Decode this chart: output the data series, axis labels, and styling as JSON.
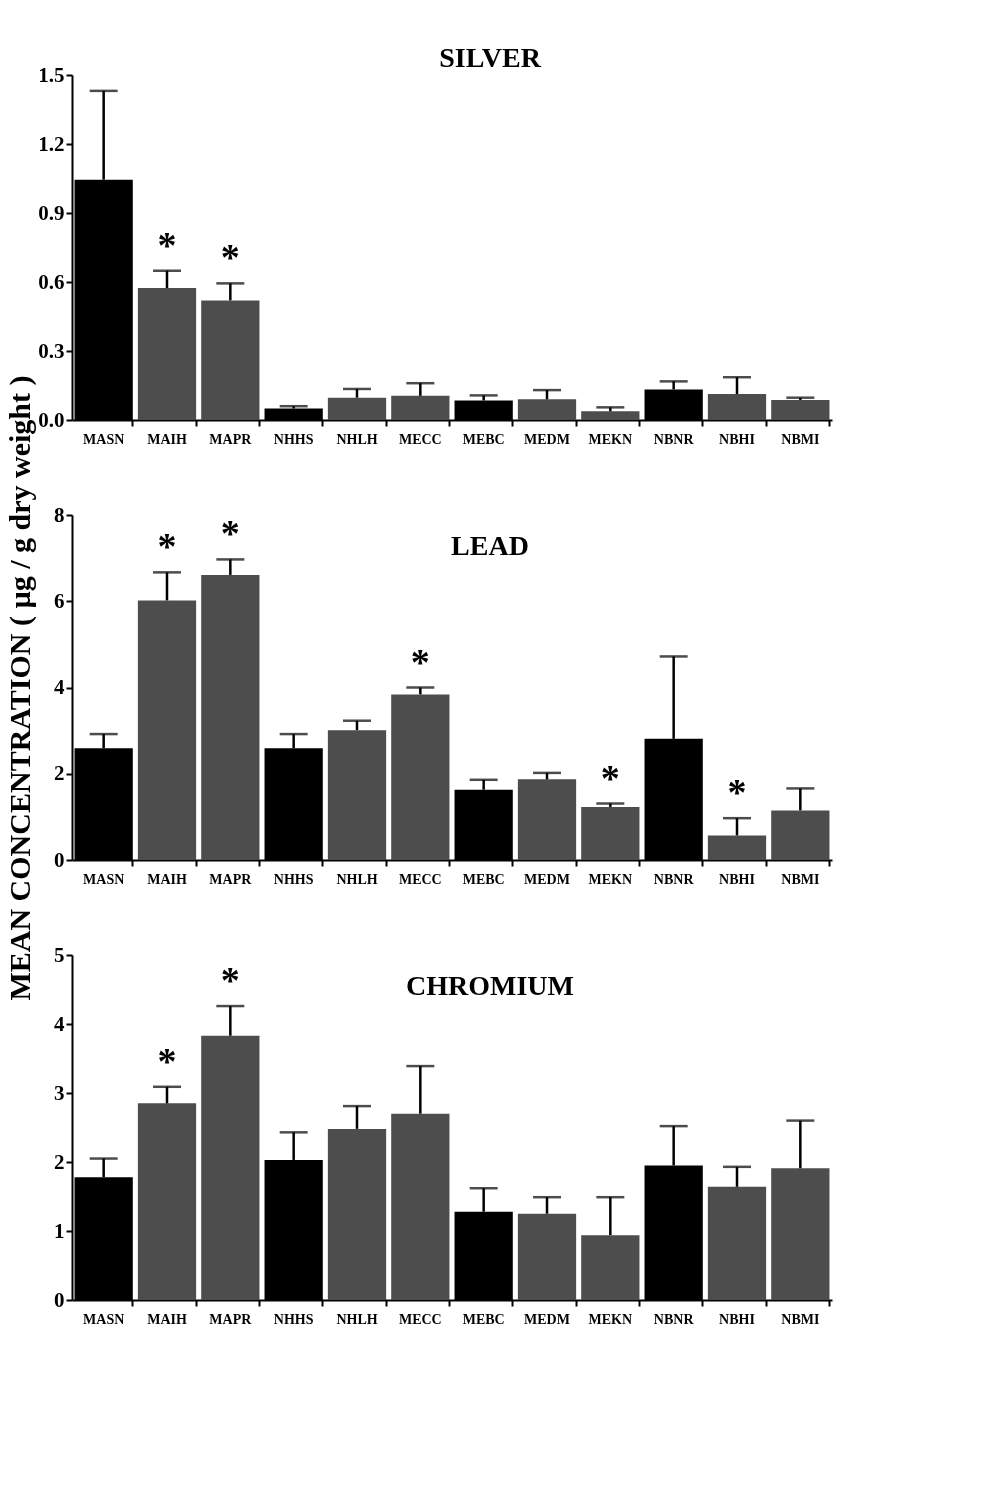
{
  "chart_data": [
    {
      "type": "bar",
      "title": "SILVER",
      "categories": [
        "MASN",
        "MAIH",
        "MAPR",
        "NHHS",
        "NHLH",
        "MECC",
        "MEBC",
        "MEDM",
        "MEKN",
        "NBNR",
        "NBHI",
        "NBMI"
      ],
      "values": [
        1.045,
        0.574,
        0.52,
        0.05,
        0.097,
        0.105,
        0.085,
        0.09,
        0.038,
        0.133,
        0.113,
        0.087
      ],
      "colors": [
        "#000000",
        "#4d4d4d",
        "#4d4d4d",
        "#000000",
        "#4d4d4d",
        "#4d4d4d",
        "#000000",
        "#4d4d4d",
        "#4d4d4d",
        "#000000",
        "#4d4d4d",
        "#4d4d4d"
      ],
      "errors": [
        [
          1.045,
          1.431
        ],
        [
          0.574,
          0.649
        ],
        [
          0.52,
          0.594
        ],
        [
          0.05,
          0.06
        ],
        [
          0.097,
          0.135
        ],
        [
          0.105,
          0.16
        ],
        [
          0.085,
          0.107
        ],
        [
          0.09,
          0.13
        ],
        [
          0.038,
          0.055
        ],
        [
          0.133,
          0.168
        ],
        [
          0.113,
          0.186
        ],
        [
          0.087,
          0.097
        ]
      ],
      "ylim": [
        0,
        1.5
      ],
      "yticks": [
        {
          "value": 0,
          "label": "0.0"
        },
        {
          "value": 0.3,
          "label": "0.3"
        },
        {
          "value": 0.6,
          "label": "0.6"
        },
        {
          "value": 0.9,
          "label": "0.9"
        },
        {
          "value": 1.2,
          "label": "1.2"
        },
        1.5
      ],
      "annotations": [
        {
          "text": "*",
          "x": "MAIH",
          "y": 0.649
        },
        {
          "text": "*",
          "x": "MAPR",
          "y": 0.594
        }
      ],
      "grid": false
    },
    {
      "type": "bar",
      "title": "LEAD",
      "ylabel": "MEAN CONCENTRATION ( µg / g dry weight )",
      "categories": [
        "MASN",
        "MAIH",
        "MAPR",
        "NHHS",
        "NHLH",
        "MECC",
        "MEBC",
        "MEDM",
        "MEKN",
        "NBNR",
        "NBHI",
        "NBMI"
      ],
      "values": [
        2.59,
        6.02,
        6.61,
        2.59,
        3.01,
        3.84,
        1.63,
        1.87,
        1.23,
        2.81,
        0.57,
        1.15
      ],
      "colors": [
        "#000000",
        "#4d4d4d",
        "#4d4d4d",
        "#000000",
        "#4d4d4d",
        "#4d4d4d",
        "#000000",
        "#4d4d4d",
        "#4d4d4d",
        "#000000",
        "#4d4d4d",
        "#4d4d4d"
      ],
      "errors": [
        [
          2.59,
          2.92
        ],
        [
          6.02,
          6.67
        ],
        [
          6.61,
          6.97
        ],
        [
          2.59,
          2.92
        ],
        [
          3.01,
          3.23
        ],
        [
          3.84,
          4.0
        ],
        [
          1.63,
          1.86
        ],
        [
          1.87,
          2.02
        ],
        [
          1.23,
          1.31
        ],
        [
          2.81,
          4.72
        ],
        [
          0.57,
          0.97
        ],
        [
          1.15,
          1.66
        ]
      ],
      "ylim": [
        0,
        8
      ],
      "yticks": [
        0,
        2,
        4,
        6,
        8
      ],
      "annotations": [
        {
          "text": "*",
          "x": "MAIH",
          "y": 6.67
        },
        {
          "text": "*",
          "x": "MAPR",
          "y": 6.97
        },
        {
          "text": "*",
          "x": "MECC",
          "y": 4.0
        },
        {
          "text": "*",
          "x": "MEKN",
          "y": 1.31
        },
        {
          "text": "*",
          "x": "NBHI",
          "y": 0.97
        }
      ],
      "grid": false
    },
    {
      "type": "bar",
      "title": "CHROMIUM",
      "categories": [
        "MASN",
        "MAIH",
        "MAPR",
        "NHHS",
        "NHLH",
        "MECC",
        "MEBC",
        "MEDM",
        "MEKN",
        "NBNR",
        "NBHI",
        "NBMI"
      ],
      "values": [
        1.78,
        2.85,
        3.83,
        2.03,
        2.48,
        2.7,
        1.28,
        1.25,
        0.94,
        1.95,
        1.64,
        1.91
      ],
      "colors": [
        "#000000",
        "#4d4d4d",
        "#4d4d4d",
        "#000000",
        "#4d4d4d",
        "#4d4d4d",
        "#000000",
        "#4d4d4d",
        "#4d4d4d",
        "#000000",
        "#4d4d4d",
        "#4d4d4d"
      ],
      "errors": [
        [
          1.78,
          2.05
        ],
        [
          2.85,
          3.09
        ],
        [
          3.83,
          4.26
        ],
        [
          2.03,
          2.43
        ],
        [
          2.48,
          2.81
        ],
        [
          2.7,
          3.39
        ],
        [
          1.28,
          1.62
        ],
        [
          1.25,
          1.49
        ],
        [
          0.94,
          1.49
        ],
        [
          1.95,
          2.52
        ],
        [
          1.64,
          1.93
        ],
        [
          1.91,
          2.6
        ]
      ],
      "ylim": [
        0,
        5
      ],
      "yticks": [
        0,
        1,
        2,
        3,
        4,
        5
      ],
      "annotations": [
        {
          "text": "*",
          "x": "MAIH",
          "y": 3.09
        },
        {
          "text": "*",
          "x": "MAPR",
          "y": 4.26
        }
      ],
      "grid": false
    }
  ]
}
